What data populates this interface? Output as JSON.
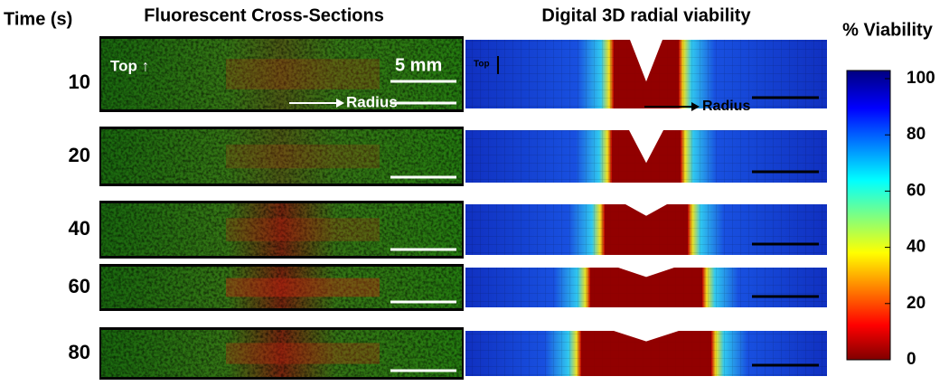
{
  "header": {
    "time": "Time (s)",
    "fluorescent": "Fluorescent Cross-Sections",
    "digital": "Digital 3D radial viability"
  },
  "rows": [
    {
      "time": "10"
    },
    {
      "time": "20"
    },
    {
      "time": "40"
    },
    {
      "time": "60"
    },
    {
      "time": "80"
    }
  ],
  "annotations": {
    "top_left": "Top ↑",
    "scale": "5 mm",
    "radius_left": "Radius",
    "top_right": "Top",
    "radius_right": "Radius"
  },
  "colorbar": {
    "title": "% Viability",
    "lim": [
      0,
      100
    ],
    "ticks": [
      0,
      20,
      40,
      60,
      80,
      100
    ]
  }
}
